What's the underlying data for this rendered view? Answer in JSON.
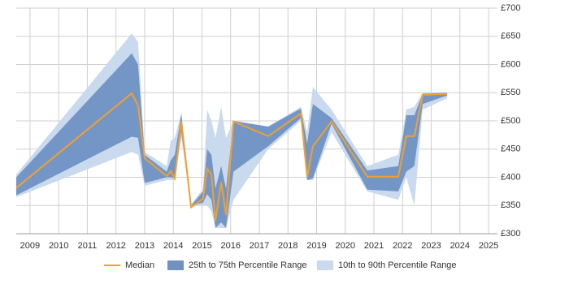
{
  "chart_data": {
    "type": "range-line",
    "x": [
      2008.52,
      2012.55,
      2012.77,
      2013.0,
      2013.77,
      2013.91,
      2014.05,
      2014.28,
      2014.62,
      2015.04,
      2015.18,
      2015.33,
      2015.47,
      2015.67,
      2015.84,
      2016.1,
      2017.31,
      2018.45,
      2018.67,
      2018.87,
      2019.52,
      2020.77,
      2021.85,
      2022.13,
      2022.41,
      2022.7,
      2023.55
    ],
    "series": [
      {
        "name": "Median",
        "color": "#f0a030",
        "values": [
          381,
          549,
          527,
          434,
          402,
          411,
          398,
          499,
          347,
          362,
          415,
          405,
          323,
          391,
          333,
          499,
          473,
          513,
          401,
          455,
          499,
          401,
          401,
          473,
          473,
          546,
          548
        ]
      },
      {
        "name": "25th to 75th Percentile Range",
        "color": "#7092c3",
        "low": [
          368,
          472,
          470,
          390,
          400,
          400,
          398,
          480,
          350,
          355,
          370,
          360,
          310,
          320,
          310,
          410,
          455,
          505,
          395,
          398,
          495,
          378,
          375,
          410,
          420,
          530,
          545
        ],
        "high": [
          400,
          620,
          600,
          440,
          410,
          430,
          440,
          512,
          350,
          375,
          450,
          440,
          380,
          420,
          380,
          500,
          490,
          522,
          460,
          530,
          505,
          412,
          420,
          510,
          510,
          548,
          550
        ]
      },
      {
        "name": "10th to 90th Percentile Range",
        "color": "#c9daee",
        "low": [
          365,
          445,
          440,
          385,
          395,
          395,
          395,
          470,
          348,
          350,
          350,
          340,
          310,
          310,
          310,
          360,
          450,
          500,
          395,
          395,
          480,
          375,
          360,
          400,
          350,
          520,
          540
        ],
        "high": [
          405,
          655,
          640,
          445,
          420,
          465,
          470,
          515,
          352,
          380,
          520,
          500,
          470,
          525,
          470,
          500,
          490,
          525,
          480,
          560,
          520,
          420,
          440,
          520,
          525,
          550,
          550
        ]
      }
    ],
    "xlim": [
      2008.52,
      2025.31
    ],
    "xticks": [
      2009,
      2010,
      2011,
      2012,
      2013,
      2014,
      2015,
      2016,
      2017,
      2018,
      2019,
      2020,
      2021,
      2022,
      2023,
      2024,
      2025
    ],
    "ylim": [
      300,
      700
    ],
    "yticks": [
      {
        "value": 300,
        "label": "£300"
      },
      {
        "value": 350,
        "label": "£350"
      },
      {
        "value": 400,
        "label": "£400"
      },
      {
        "value": 450,
        "label": "£450"
      },
      {
        "value": 500,
        "label": "£500"
      },
      {
        "value": 550,
        "label": "£550"
      },
      {
        "value": 600,
        "label": "£600"
      },
      {
        "value": 650,
        "label": "£650"
      },
      {
        "value": 700,
        "label": "£700"
      }
    ],
    "grid": true,
    "legend": "bottom"
  }
}
